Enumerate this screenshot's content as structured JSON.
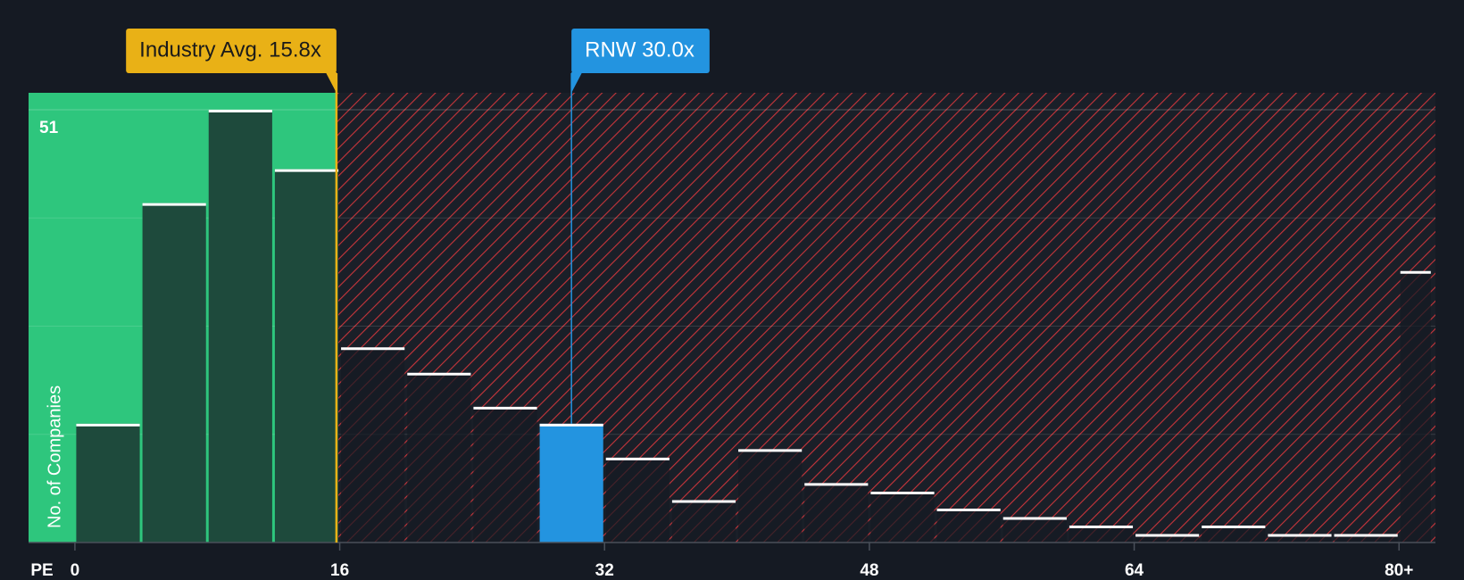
{
  "chart_data": {
    "type": "histogram",
    "x_label": "PE",
    "y_label": "No. of Companies",
    "bins": [
      0,
      4,
      8,
      12,
      16,
      20,
      24,
      28,
      32,
      36,
      40,
      44,
      48,
      52,
      56,
      60,
      64,
      68,
      72,
      76,
      80,
      82
    ],
    "values": [
      14,
      40,
      51,
      44,
      23,
      20,
      16,
      14,
      10,
      5,
      11,
      7,
      6,
      4,
      3,
      2,
      1,
      2,
      1,
      1,
      32
    ],
    "color": "#1e4a3c",
    "xlim": [
      -2.8,
      82.2
    ],
    "ylim": [
      0,
      53
    ],
    "xticks": [
      0,
      16,
      32,
      48,
      64,
      {
        "value": 80,
        "label": "80+"
      }
    ],
    "yticks": [
      51
    ],
    "ygrid": [
      12.75,
      25.5,
      38.25,
      51
    ],
    "annotations": [
      {
        "label": "Industry Avg. 15.8x",
        "value": 15.8,
        "color": "#e9b116"
      },
      {
        "label": "RNW 30.0x",
        "value": 30.0,
        "color": "#2394e0"
      }
    ]
  }
}
